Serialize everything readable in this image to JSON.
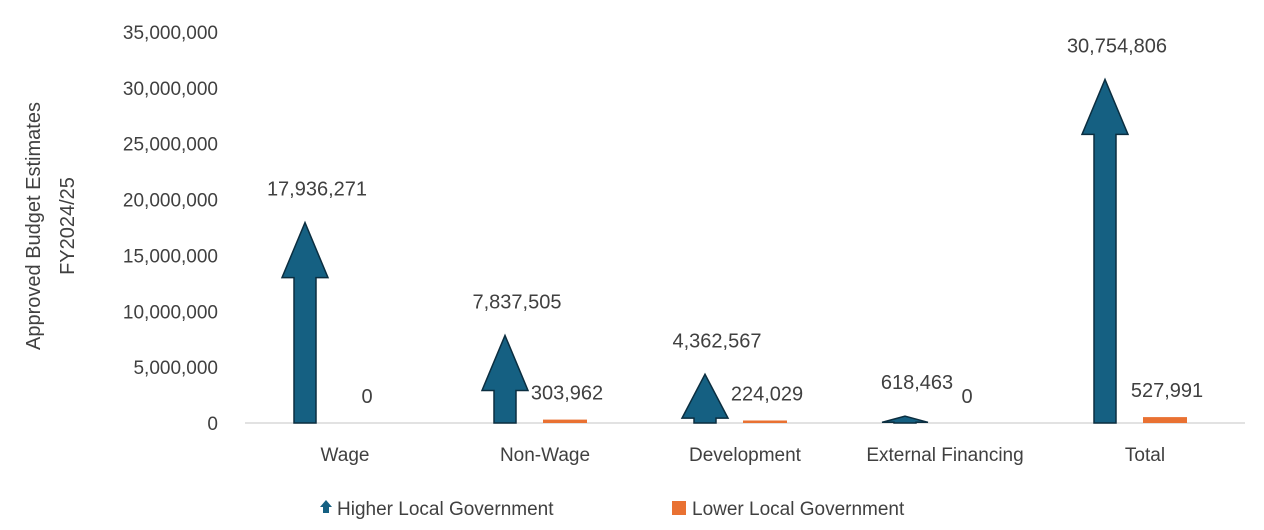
{
  "chart_data": {
    "type": "bar",
    "title": "",
    "xlabel": "",
    "ylabel": [
      "Approved Budget Estimates",
      "FY2024/25"
    ],
    "ylim": [
      0,
      35000000
    ],
    "yticks": [
      0,
      5000000,
      10000000,
      15000000,
      20000000,
      25000000,
      30000000,
      35000000
    ],
    "ytick_labels": [
      "0",
      "5,000,000",
      "10,000,000",
      "15,000,000",
      "20,000,000",
      "25,000,000",
      "30,000,000",
      "35,000,000"
    ],
    "categories": [
      "Wage",
      "Non-Wage",
      "Development",
      "External Financing",
      "Total"
    ],
    "grid": false,
    "legend_position": "bottom",
    "series": [
      {
        "name": "Higher Local Government",
        "marker": "arrow",
        "color": "#156082",
        "values": [
          17936271,
          7837505,
          4362567,
          618463,
          30754806
        ],
        "labels": [
          "17,936,271",
          "7,837,505",
          "4,362,567",
          "618,463",
          "30,754,806"
        ]
      },
      {
        "name": "Lower Local Government",
        "marker": "square",
        "color": "#E97132",
        "values": [
          0,
          303962,
          224029,
          0,
          527991
        ],
        "labels": [
          "0",
          "303,962",
          "224,029",
          "0",
          "527,991"
        ]
      }
    ]
  }
}
